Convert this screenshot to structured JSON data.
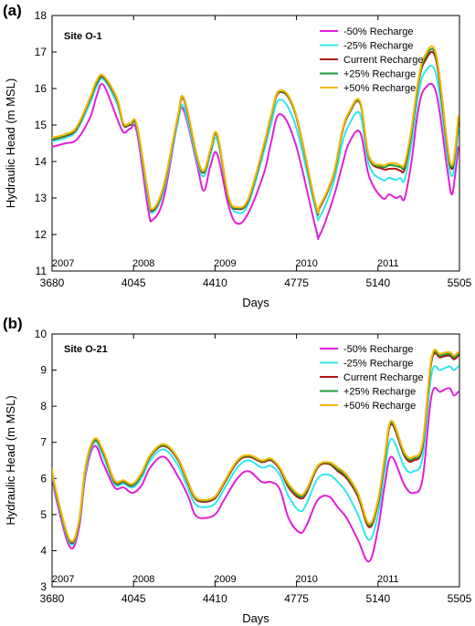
{
  "chart_data": [
    {
      "type": "line",
      "panel_label": "(a)",
      "site_label": "Site O-1",
      "xlabel": "Days",
      "ylabel": "Hydraulic Head (m MSL)",
      "xlim": [
        3680,
        5505
      ],
      "ylim": [
        11,
        18
      ],
      "xticks": [
        3680,
        4045,
        4410,
        4775,
        5140,
        5505
      ],
      "yticks": [
        11,
        12,
        13,
        14,
        15,
        16,
        17,
        18
      ],
      "year_labels": [
        {
          "text": "2007",
          "x": 3730
        },
        {
          "text": "2008",
          "x": 4090
        },
        {
          "text": "2009",
          "x": 4455
        },
        {
          "text": "2010",
          "x": 4820
        },
        {
          "text": "2011",
          "x": 5185
        }
      ],
      "legend_position": "top-right",
      "series": [
        {
          "name": "-50% Recharge",
          "color": "#e020d8",
          "x": [
            3680,
            3740,
            3790,
            3850,
            3880,
            3910,
            3970,
            4000,
            4030,
            4060,
            4110,
            4130,
            4180,
            4240,
            4270,
            4330,
            4360,
            4390,
            4420,
            4470,
            4510,
            4560,
            4630,
            4660,
            4700,
            4770,
            4860,
            4880,
            4940,
            4980,
            5010,
            5060,
            5100,
            5160,
            5190,
            5220,
            5240,
            5260,
            5290,
            5320,
            5350,
            5400,
            5450,
            5470,
            5485,
            5500
          ],
          "y": [
            14.4,
            14.5,
            14.6,
            15.2,
            15.8,
            16.1,
            15.2,
            14.8,
            14.9,
            14.8,
            12.7,
            12.4,
            13.0,
            15.0,
            15.4,
            13.9,
            13.2,
            13.9,
            14.2,
            12.8,
            12.3,
            12.6,
            13.7,
            14.5,
            15.3,
            14.5,
            12.2,
            12.0,
            13.0,
            13.9,
            14.5,
            14.8,
            13.6,
            13.0,
            13.1,
            13.0,
            13.05,
            13.0,
            14.0,
            15.4,
            16.0,
            15.9,
            13.8,
            13.1,
            13.6,
            14.4
          ]
        },
        {
          "name": "-25% Recharge",
          "color": "#30e8ec",
          "x": [
            3680,
            3740,
            3790,
            3850,
            3880,
            3910,
            3970,
            4000,
            4030,
            4060,
            4110,
            4130,
            4180,
            4240,
            4270,
            4330,
            4360,
            4390,
            4420,
            4470,
            4510,
            4560,
            4630,
            4660,
            4700,
            4770,
            4860,
            4880,
            4940,
            4980,
            5010,
            5060,
            5100,
            5160,
            5190,
            5220,
            5240,
            5260,
            5290,
            5320,
            5350,
            5400,
            5450,
            5470,
            5485,
            5500
          ],
          "y": [
            14.55,
            14.65,
            14.85,
            15.6,
            16.05,
            16.25,
            15.6,
            15.0,
            15.0,
            14.9,
            13.0,
            12.6,
            13.2,
            15.0,
            15.5,
            14.0,
            13.6,
            14.2,
            14.6,
            13.0,
            12.6,
            12.85,
            14.3,
            15.0,
            15.7,
            15.0,
            12.7,
            12.5,
            13.4,
            14.5,
            15.0,
            15.3,
            13.9,
            13.5,
            13.55,
            13.5,
            13.55,
            13.5,
            14.5,
            15.8,
            16.45,
            16.4,
            14.2,
            13.6,
            14.0,
            14.9
          ]
        },
        {
          "name": "Current Recharge",
          "color": "#b41414",
          "x": [
            3680,
            3740,
            3790,
            3850,
            3880,
            3910,
            3970,
            4000,
            4030,
            4060,
            4110,
            4130,
            4180,
            4240,
            4270,
            4330,
            4360,
            4390,
            4420,
            4470,
            4510,
            4560,
            4630,
            4660,
            4700,
            4770,
            4860,
            4880,
            4940,
            4980,
            5010,
            5060,
            5100,
            5160,
            5190,
            5220,
            5240,
            5260,
            5290,
            5320,
            5350,
            5400,
            5450,
            5470,
            5485,
            5500
          ],
          "y": [
            14.6,
            14.7,
            14.9,
            15.7,
            16.15,
            16.3,
            15.7,
            15.0,
            15.0,
            14.95,
            13.1,
            12.65,
            13.3,
            15.1,
            15.7,
            14.1,
            13.7,
            14.3,
            14.7,
            13.0,
            12.7,
            12.95,
            14.45,
            15.2,
            15.9,
            15.3,
            12.8,
            12.75,
            13.6,
            14.8,
            15.3,
            15.6,
            14.1,
            13.8,
            13.8,
            13.8,
            13.75,
            13.8,
            14.8,
            16.1,
            16.75,
            16.8,
            14.4,
            13.8,
            14.2,
            15.1
          ]
        },
        {
          "name": "+25% Recharge",
          "color": "#1f9a3a",
          "x": [
            3680,
            3740,
            3790,
            3850,
            3880,
            3910,
            3970,
            4000,
            4030,
            4060,
            4110,
            4130,
            4180,
            4240,
            4270,
            4330,
            4360,
            4390,
            4420,
            4470,
            4510,
            4560,
            4630,
            4660,
            4700,
            4770,
            4860,
            4880,
            4940,
            4980,
            5010,
            5060,
            5100,
            5160,
            5190,
            5220,
            5240,
            5260,
            5290,
            5320,
            5350,
            5400,
            5450,
            5470,
            5485,
            5500
          ],
          "y": [
            14.62,
            14.72,
            14.92,
            15.72,
            16.18,
            16.32,
            15.72,
            15.02,
            15.02,
            14.97,
            13.12,
            12.68,
            13.32,
            15.12,
            15.72,
            14.12,
            13.72,
            14.32,
            14.72,
            13.02,
            12.72,
            12.98,
            14.48,
            15.22,
            15.92,
            15.32,
            12.82,
            12.78,
            13.63,
            14.83,
            15.32,
            15.62,
            14.12,
            13.85,
            13.9,
            13.88,
            13.85,
            13.88,
            14.85,
            16.15,
            16.82,
            16.88,
            14.45,
            13.85,
            14.25,
            15.15
          ]
        },
        {
          "name": "+50% Recharge",
          "color": "#f5b800",
          "x": [
            3680,
            3740,
            3790,
            3850,
            3880,
            3910,
            3970,
            4000,
            4030,
            4060,
            4110,
            4130,
            4180,
            4240,
            4270,
            4330,
            4360,
            4390,
            4420,
            4470,
            4510,
            4560,
            4630,
            4660,
            4700,
            4770,
            4860,
            4880,
            4940,
            4980,
            5010,
            5060,
            5100,
            5160,
            5190,
            5220,
            5240,
            5260,
            5290,
            5320,
            5350,
            5400,
            5450,
            5470,
            5485,
            5500
          ],
          "y": [
            14.65,
            14.75,
            14.95,
            15.75,
            16.22,
            16.35,
            15.75,
            15.05,
            15.05,
            15.0,
            13.15,
            12.7,
            13.35,
            15.15,
            15.75,
            14.15,
            13.75,
            14.35,
            14.75,
            13.05,
            12.75,
            13.0,
            14.5,
            15.25,
            15.95,
            15.35,
            12.85,
            12.8,
            13.65,
            14.85,
            15.35,
            15.65,
            14.15,
            13.9,
            13.95,
            13.95,
            13.9,
            13.95,
            14.9,
            16.2,
            16.9,
            16.95,
            14.5,
            13.9,
            14.3,
            15.25
          ]
        }
      ]
    },
    {
      "type": "line",
      "panel_label": "(b)",
      "site_label": "Site O-21",
      "xlabel": "Days",
      "ylabel": "Hydraulic Head (m MSL)",
      "xlim": [
        3680,
        5505
      ],
      "ylim": [
        3,
        10
      ],
      "xticks": [
        3680,
        4045,
        4410,
        4775,
        5140,
        5505
      ],
      "yticks": [
        3,
        4,
        5,
        6,
        7,
        8,
        9,
        10
      ],
      "year_labels": [
        {
          "text": "2007",
          "x": 3730
        },
        {
          "text": "2008",
          "x": 4090
        },
        {
          "text": "2009",
          "x": 4455
        },
        {
          "text": "2010",
          "x": 4820
        },
        {
          "text": "2011",
          "x": 5185
        }
      ],
      "legend_position": "top-right",
      "series": [
        {
          "name": "-50% Recharge",
          "color": "#e020d8",
          "x": [
            3680,
            3700,
            3760,
            3800,
            3830,
            3870,
            3910,
            3960,
            4000,
            4040,
            4080,
            4120,
            4180,
            4240,
            4290,
            4320,
            4360,
            4410,
            4450,
            4510,
            4560,
            4620,
            4660,
            4700,
            4740,
            4790,
            4820,
            4870,
            4920,
            4960,
            5000,
            5050,
            5100,
            5140,
            5170,
            5200,
            5260,
            5300,
            5340,
            5380,
            5420,
            5460,
            5480,
            5500
          ],
          "y": [
            6.1,
            5.4,
            4.1,
            4.6,
            6.1,
            6.9,
            6.4,
            5.75,
            5.75,
            5.6,
            5.8,
            6.3,
            6.6,
            6.1,
            5.5,
            5.0,
            4.9,
            5.0,
            5.4,
            6.0,
            6.2,
            5.9,
            5.9,
            5.7,
            4.9,
            4.5,
            4.7,
            5.4,
            5.5,
            5.2,
            4.9,
            4.3,
            3.7,
            4.6,
            5.8,
            6.6,
            5.8,
            5.6,
            6.0,
            8.3,
            8.4,
            8.5,
            8.3,
            8.4
          ]
        },
        {
          "name": "-25% Recharge",
          "color": "#30e8ec",
          "x": [
            3680,
            3700,
            3760,
            3800,
            3830,
            3870,
            3910,
            3960,
            4000,
            4040,
            4080,
            4120,
            4180,
            4240,
            4290,
            4320,
            4360,
            4410,
            4450,
            4510,
            4560,
            4620,
            4660,
            4700,
            4740,
            4790,
            4820,
            4870,
            4920,
            4960,
            5000,
            5050,
            5100,
            5140,
            5170,
            5200,
            5260,
            5300,
            5340,
            5380,
            5420,
            5460,
            5480,
            5500
          ],
          "y": [
            6.15,
            5.5,
            4.2,
            4.7,
            6.2,
            7.0,
            6.6,
            5.85,
            5.85,
            5.75,
            6.0,
            6.5,
            6.8,
            6.4,
            5.7,
            5.3,
            5.2,
            5.3,
            5.7,
            6.3,
            6.5,
            6.3,
            6.35,
            6.1,
            5.5,
            5.1,
            5.3,
            6.0,
            6.1,
            5.9,
            5.6,
            5.0,
            4.3,
            5.0,
            6.2,
            7.1,
            6.3,
            6.2,
            6.6,
            8.9,
            9.0,
            9.1,
            9.0,
            9.1
          ]
        },
        {
          "name": "Current Recharge",
          "color": "#b41414",
          "x": [
            3680,
            3700,
            3760,
            3800,
            3830,
            3870,
            3910,
            3960,
            4000,
            4040,
            4080,
            4120,
            4180,
            4240,
            4290,
            4320,
            4360,
            4410,
            4450,
            4510,
            4560,
            4620,
            4660,
            4700,
            4740,
            4790,
            4820,
            4870,
            4920,
            4960,
            5000,
            5050,
            5100,
            5140,
            5170,
            5200,
            5260,
            5300,
            5340,
            5380,
            5420,
            5460,
            5480,
            5500
          ],
          "y": [
            6.2,
            5.55,
            4.25,
            4.75,
            6.3,
            7.05,
            6.7,
            5.9,
            5.9,
            5.8,
            6.1,
            6.6,
            6.9,
            6.55,
            5.85,
            5.45,
            5.35,
            5.45,
            5.85,
            6.45,
            6.6,
            6.45,
            6.5,
            6.25,
            5.75,
            5.45,
            5.6,
            6.3,
            6.4,
            6.2,
            6.0,
            5.5,
            4.65,
            5.3,
            6.5,
            7.5,
            6.6,
            6.5,
            6.9,
            9.25,
            9.35,
            9.4,
            9.3,
            9.4
          ]
        },
        {
          "name": "+25% Recharge",
          "color": "#1f9a3a",
          "x": [
            3680,
            3700,
            3760,
            3800,
            3830,
            3870,
            3910,
            3960,
            4000,
            4040,
            4080,
            4120,
            4180,
            4240,
            4290,
            4320,
            4360,
            4410,
            4450,
            4510,
            4560,
            4620,
            4660,
            4700,
            4740,
            4790,
            4820,
            4870,
            4920,
            4960,
            5000,
            5050,
            5100,
            5140,
            5170,
            5200,
            5260,
            5300,
            5340,
            5380,
            5420,
            5460,
            5480,
            5500
          ],
          "y": [
            6.22,
            5.57,
            4.27,
            4.78,
            6.32,
            7.07,
            6.72,
            5.92,
            5.92,
            5.82,
            6.12,
            6.62,
            6.92,
            6.58,
            5.88,
            5.48,
            5.38,
            5.48,
            5.88,
            6.48,
            6.63,
            6.48,
            6.53,
            6.28,
            5.8,
            5.5,
            5.65,
            6.33,
            6.43,
            6.25,
            6.05,
            5.55,
            4.7,
            5.35,
            6.55,
            7.55,
            6.65,
            6.55,
            6.95,
            9.3,
            9.4,
            9.45,
            9.35,
            9.45
          ]
        },
        {
          "name": "+50% Recharge",
          "color": "#f5b800",
          "x": [
            3680,
            3700,
            3760,
            3800,
            3830,
            3870,
            3910,
            3960,
            4000,
            4040,
            4080,
            4120,
            4180,
            4240,
            4290,
            4320,
            4360,
            4410,
            4450,
            4510,
            4560,
            4620,
            4660,
            4700,
            4740,
            4790,
            4820,
            4870,
            4920,
            4960,
            5000,
            5050,
            5100,
            5140,
            5170,
            5200,
            5260,
            5300,
            5340,
            5380,
            5420,
            5460,
            5480,
            5500
          ],
          "y": [
            6.25,
            5.6,
            4.3,
            4.8,
            6.35,
            7.1,
            6.75,
            5.95,
            5.95,
            5.85,
            6.15,
            6.65,
            6.95,
            6.6,
            5.9,
            5.5,
            5.4,
            5.5,
            5.9,
            6.5,
            6.65,
            6.5,
            6.55,
            6.3,
            5.85,
            5.55,
            5.7,
            6.35,
            6.45,
            6.3,
            6.1,
            5.6,
            4.75,
            5.4,
            6.6,
            7.6,
            6.7,
            6.6,
            7.0,
            9.35,
            9.45,
            9.5,
            9.4,
            9.5
          ]
        }
      ]
    }
  ]
}
